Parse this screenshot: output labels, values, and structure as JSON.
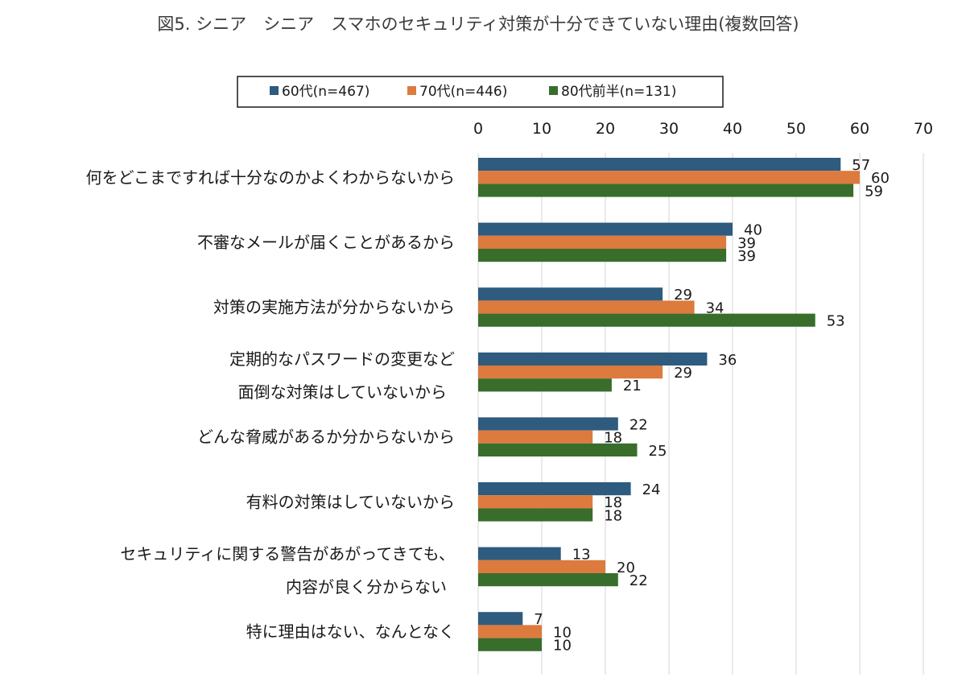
{
  "chart_data": {
    "type": "bar",
    "orientation": "horizontal",
    "title": "図5. シニア　シニア　スマホのセキュリティ対策が十分できていない理由(複数回答)",
    "xlim": [
      0,
      70
    ],
    "xticks": [
      0,
      10,
      20,
      30,
      40,
      50,
      60,
      70
    ],
    "grid": true,
    "legend_position": "top",
    "categories": [
      [
        "何をどこまですれば十分なのかよくわからないから"
      ],
      [
        "不審なメールが届くことがあるから"
      ],
      [
        "対策の実施方法が分からないから"
      ],
      [
        "定期的なパスワードの変更など",
        "面倒な対策はしていないから"
      ],
      [
        "どんな脅威があるか分からないから"
      ],
      [
        "有料の対策はしていないから"
      ],
      [
        "セキュリティに関する警告があがってきても、",
        "内容が良く分からない"
      ],
      [
        "特に理由はない、なんとなく"
      ]
    ],
    "series": [
      {
        "name": "60代(n=467)",
        "color": "#2e5b7e",
        "values": [
          57,
          40,
          29,
          36,
          22,
          24,
          13,
          7
        ]
      },
      {
        "name": "70代(n=446)",
        "color": "#dd7a3e",
        "values": [
          60,
          39,
          34,
          29,
          18,
          18,
          20,
          10
        ]
      },
      {
        "name": "80代前半(n=131)",
        "color": "#386d2c",
        "values": [
          59,
          39,
          53,
          21,
          25,
          18,
          22,
          10
        ]
      }
    ]
  }
}
